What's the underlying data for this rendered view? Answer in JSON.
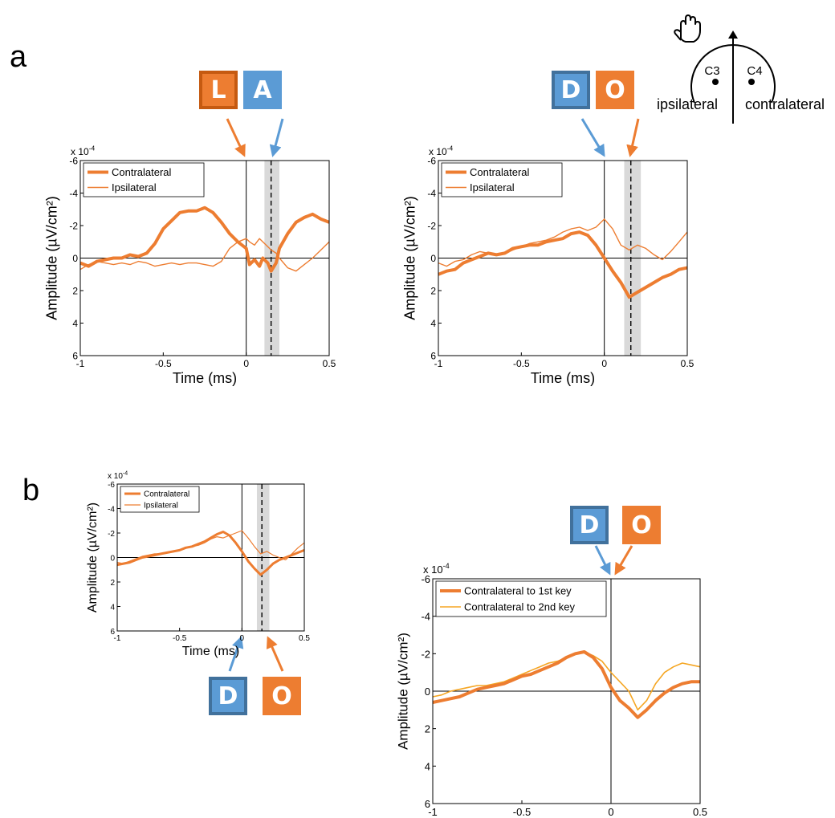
{
  "panel_labels": {
    "a": "a",
    "b": "b"
  },
  "colors": {
    "orange": "#ed7d31",
    "blue": "#5b9bd5",
    "orange_frame": "#c55a11",
    "blue_frame": "#41719c",
    "light_orange": "#f5a623",
    "shade": "#d9d9d9"
  },
  "head_diagram": {
    "hand_icon": "raised-hand-icon",
    "electrodes": [
      "C3",
      "C4"
    ],
    "left_label": "ipsilateral",
    "right_label": "contralateral"
  },
  "keys": {
    "a1_first": "L",
    "a1_second": "A",
    "a2_first": "D",
    "a2_second": "O",
    "b1_first": "D",
    "b1_second": "O",
    "b2_first": "D",
    "b2_second": "O"
  },
  "chart_data": [
    {
      "id": "a1",
      "type": "line",
      "xlabel": "Time (ms)",
      "ylabel": "Amplitude (µV/cm²)",
      "scale_label": "x 10-4",
      "xlim": [
        -1,
        0.5
      ],
      "ylim": [
        -6,
        6
      ],
      "y_inverted": true,
      "xticks": [
        -1,
        -0.5,
        0,
        0.5
      ],
      "xtick_labels": [
        "-1",
        "-0.5",
        "0",
        "0.5"
      ],
      "yticks": [
        -6,
        -4,
        -2,
        0,
        2,
        4,
        6
      ],
      "ytick_labels": [
        "-6",
        "-4",
        "-2",
        "0",
        "2",
        "4",
        "6"
      ],
      "legend": "top-left",
      "vline_solid": 0,
      "vline_dashed": 0.15,
      "shade": [
        0.11,
        0.2
      ],
      "series": [
        {
          "name": "Contralateral",
          "style": "thick",
          "x": [
            -1,
            -0.95,
            -0.9,
            -0.85,
            -0.8,
            -0.75,
            -0.7,
            -0.65,
            -0.6,
            -0.55,
            -0.5,
            -0.45,
            -0.4,
            -0.35,
            -0.3,
            -0.25,
            -0.2,
            -0.15,
            -0.1,
            -0.05,
            0,
            0.02,
            0.05,
            0.08,
            0.1,
            0.13,
            0.15,
            0.18,
            0.2,
            0.25,
            0.3,
            0.35,
            0.4,
            0.45,
            0.5
          ],
          "y": [
            0.3,
            0.5,
            0.2,
            0.1,
            0,
            0,
            -0.2,
            -0.1,
            -0.3,
            -0.9,
            -1.8,
            -2.3,
            -2.8,
            -2.9,
            -2.9,
            -3.1,
            -2.8,
            -2.2,
            -1.5,
            -1.0,
            -0.6,
            0.4,
            0.1,
            0.5,
            0,
            0.3,
            0.8,
            0.3,
            -0.6,
            -1.5,
            -2.2,
            -2.5,
            -2.7,
            -2.4,
            -2.2
          ]
        },
        {
          "name": "Ipsilateral",
          "style": "thin",
          "x": [
            -1,
            -0.95,
            -0.9,
            -0.85,
            -0.8,
            -0.75,
            -0.7,
            -0.65,
            -0.6,
            -0.55,
            -0.5,
            -0.45,
            -0.4,
            -0.35,
            -0.3,
            -0.25,
            -0.2,
            -0.15,
            -0.1,
            -0.05,
            0,
            0.02,
            0.05,
            0.08,
            0.1,
            0.13,
            0.15,
            0.18,
            0.2,
            0.25,
            0.3,
            0.35,
            0.4,
            0.45,
            0.5
          ],
          "y": [
            0.7,
            0.4,
            0.2,
            0.3,
            0.4,
            0.3,
            0.4,
            0.2,
            0.3,
            0.5,
            0.4,
            0.3,
            0.4,
            0.3,
            0.3,
            0.4,
            0.5,
            0.2,
            -0.6,
            -1.0,
            -1.2,
            -1.0,
            -0.8,
            -1.2,
            -1.0,
            -0.7,
            -0.5,
            -0.3,
            0,
            0.6,
            0.8,
            0.4,
            0,
            -0.5,
            -1.0
          ]
        }
      ]
    },
    {
      "id": "a2",
      "type": "line",
      "xlabel": "Time (ms)",
      "ylabel": "Amplitude (µV/cm²)",
      "scale_label": "x 10-4",
      "xlim": [
        -1,
        0.5
      ],
      "ylim": [
        -6,
        6
      ],
      "y_inverted": true,
      "xticks": [
        -1,
        -0.5,
        0,
        0.5
      ],
      "xtick_labels": [
        "-1",
        "-0.5",
        "0",
        "0.5"
      ],
      "yticks": [
        -6,
        -4,
        -2,
        0,
        2,
        4,
        6
      ],
      "ytick_labels": [
        "-6",
        "-4",
        "-2",
        "0",
        "2",
        "4",
        "6"
      ],
      "legend": "top-left",
      "vline_solid": 0,
      "vline_dashed": 0.16,
      "shade": [
        0.12,
        0.22
      ],
      "series": [
        {
          "name": "Contralateral",
          "style": "thick",
          "x": [
            -1,
            -0.95,
            -0.9,
            -0.85,
            -0.8,
            -0.75,
            -0.7,
            -0.65,
            -0.6,
            -0.55,
            -0.5,
            -0.45,
            -0.4,
            -0.35,
            -0.3,
            -0.25,
            -0.2,
            -0.15,
            -0.1,
            -0.05,
            0,
            0.05,
            0.1,
            0.15,
            0.2,
            0.25,
            0.3,
            0.35,
            0.4,
            0.45,
            0.5
          ],
          "y": [
            1.0,
            0.8,
            0.7,
            0.3,
            0.1,
            -0.1,
            -0.3,
            -0.2,
            -0.3,
            -0.6,
            -0.7,
            -0.8,
            -0.8,
            -1.0,
            -1.1,
            -1.2,
            -1.5,
            -1.6,
            -1.4,
            -0.8,
            0,
            0.8,
            1.5,
            2.4,
            2.1,
            1.8,
            1.5,
            1.2,
            1.0,
            0.7,
            0.6
          ]
        },
        {
          "name": "Ipsilateral",
          "style": "thin",
          "x": [
            -1,
            -0.95,
            -0.9,
            -0.85,
            -0.8,
            -0.75,
            -0.7,
            -0.65,
            -0.6,
            -0.55,
            -0.5,
            -0.45,
            -0.4,
            -0.35,
            -0.3,
            -0.25,
            -0.2,
            -0.15,
            -0.1,
            -0.05,
            0,
            0.05,
            0.1,
            0.15,
            0.2,
            0.25,
            0.3,
            0.35,
            0.4,
            0.45,
            0.5
          ],
          "y": [
            0.3,
            0.5,
            0.2,
            0.1,
            -0.2,
            -0.4,
            -0.3,
            -0.2,
            -0.3,
            -0.5,
            -0.7,
            -0.9,
            -1.0,
            -1.1,
            -1.3,
            -1.6,
            -1.8,
            -1.9,
            -1.7,
            -1.9,
            -2.4,
            -1.8,
            -0.8,
            -0.5,
            -0.8,
            -0.6,
            -0.2,
            0.1,
            -0.4,
            -1.0,
            -1.6
          ]
        }
      ]
    },
    {
      "id": "b1",
      "type": "line",
      "xlabel": "Time (ms)",
      "ylabel": "Amplitude (µV/cm²)",
      "scale_label": "x 10-4",
      "xlim": [
        -1,
        0.5
      ],
      "ylim": [
        -6,
        6
      ],
      "y_inverted": true,
      "xticks": [
        -1,
        -0.5,
        0,
        0.5
      ],
      "xtick_labels": [
        "-1",
        "-0.5",
        "0",
        "0.5"
      ],
      "yticks": [
        -6,
        -4,
        -2,
        0,
        2,
        4,
        6
      ],
      "ytick_labels": [
        "-6",
        "-4",
        "-2",
        "0",
        "2",
        "4",
        "6"
      ],
      "legend": "top-left",
      "vline_solid": 0,
      "vline_dashed": 0.16,
      "shade": [
        0.12,
        0.22
      ],
      "series": [
        {
          "name": "Contralateral",
          "style": "thick",
          "x": [
            -1,
            -0.95,
            -0.9,
            -0.85,
            -0.8,
            -0.75,
            -0.7,
            -0.65,
            -0.6,
            -0.55,
            -0.5,
            -0.45,
            -0.4,
            -0.35,
            -0.3,
            -0.25,
            -0.2,
            -0.15,
            -0.1,
            -0.05,
            0,
            0.05,
            0.1,
            0.15,
            0.2,
            0.25,
            0.3,
            0.35,
            0.4,
            0.45,
            0.5
          ],
          "y": [
            0.6,
            0.5,
            0.4,
            0.2,
            0,
            -0.1,
            -0.2,
            -0.3,
            -0.4,
            -0.5,
            -0.6,
            -0.8,
            -0.9,
            -1.1,
            -1.3,
            -1.6,
            -1.9,
            -2.1,
            -1.8,
            -1.2,
            -0.5,
            0.3,
            0.9,
            1.4,
            1.0,
            0.5,
            0.2,
            0,
            -0.2,
            -0.4,
            -0.6
          ]
        },
        {
          "name": "Ipsilateral",
          "style": "thin",
          "x": [
            -1,
            -0.95,
            -0.9,
            -0.85,
            -0.8,
            -0.75,
            -0.7,
            -0.65,
            -0.6,
            -0.55,
            -0.5,
            -0.45,
            -0.4,
            -0.35,
            -0.3,
            -0.25,
            -0.2,
            -0.15,
            -0.1,
            -0.05,
            0,
            0.05,
            0.1,
            0.15,
            0.2,
            0.25,
            0.3,
            0.35,
            0.4,
            0.45,
            0.5
          ],
          "y": [
            0.4,
            0.5,
            0.3,
            0.1,
            -0.1,
            -0.2,
            -0.3,
            -0.3,
            -0.4,
            -0.5,
            -0.6,
            -0.8,
            -0.9,
            -1.0,
            -1.2,
            -1.5,
            -1.7,
            -1.6,
            -1.8,
            -2.0,
            -2.2,
            -1.6,
            -0.9,
            -0.3,
            -0.5,
            -0.2,
            0,
            0.2,
            -0.3,
            -0.8,
            -1.2
          ]
        }
      ]
    },
    {
      "id": "b2",
      "type": "line",
      "xlabel": "Time (ms)",
      "ylabel": "Amplitude (µV/cm²)",
      "scale_label": "x 10-4",
      "xlim": [
        -1,
        0.5
      ],
      "ylim": [
        -6,
        6
      ],
      "y_inverted": true,
      "xticks": [
        -1,
        -0.5,
        0,
        0.5
      ],
      "xtick_labels": [
        "-1",
        "-0.5",
        "0",
        "0.5"
      ],
      "yticks": [
        -6,
        -4,
        -2,
        0,
        2,
        4,
        6
      ],
      "ytick_labels": [
        "-6",
        "-4",
        "-2",
        "0",
        "2",
        "4",
        "6"
      ],
      "legend": "top-left",
      "vline_solid": 0,
      "series": [
        {
          "name": "Contralateral to 1st key",
          "style": "thick",
          "x": [
            -1,
            -0.95,
            -0.9,
            -0.85,
            -0.8,
            -0.75,
            -0.7,
            -0.65,
            -0.6,
            -0.55,
            -0.5,
            -0.45,
            -0.4,
            -0.35,
            -0.3,
            -0.25,
            -0.2,
            -0.15,
            -0.1,
            -0.05,
            0,
            0.05,
            0.1,
            0.15,
            0.2,
            0.25,
            0.3,
            0.35,
            0.4,
            0.45,
            0.5
          ],
          "y": [
            0.6,
            0.5,
            0.4,
            0.3,
            0.1,
            -0.1,
            -0.2,
            -0.3,
            -0.4,
            -0.6,
            -0.8,
            -0.9,
            -1.1,
            -1.3,
            -1.5,
            -1.8,
            -2.0,
            -2.1,
            -1.8,
            -1.2,
            -0.2,
            0.5,
            0.9,
            1.4,
            1.0,
            0.5,
            0.1,
            -0.2,
            -0.4,
            -0.5,
            -0.5
          ]
        },
        {
          "name": "Contralateral to 2nd key",
          "style": "thin",
          "x": [
            -1,
            -0.95,
            -0.9,
            -0.85,
            -0.8,
            -0.75,
            -0.7,
            -0.65,
            -0.6,
            -0.55,
            -0.5,
            -0.45,
            -0.4,
            -0.35,
            -0.3,
            -0.25,
            -0.2,
            -0.15,
            -0.1,
            -0.05,
            0,
            0.05,
            0.1,
            0.15,
            0.2,
            0.25,
            0.3,
            0.35,
            0.4,
            0.45,
            0.5
          ],
          "y": [
            0.3,
            0.2,
            0,
            -0.1,
            -0.2,
            -0.3,
            -0.3,
            -0.4,
            -0.5,
            -0.7,
            -0.9,
            -1.1,
            -1.3,
            -1.5,
            -1.6,
            -1.8,
            -2.0,
            -2.1,
            -1.9,
            -1.6,
            -1.0,
            -0.5,
            0,
            1.0,
            0.5,
            -0.4,
            -1.0,
            -1.3,
            -1.5,
            -1.4,
            -1.3
          ]
        }
      ]
    }
  ]
}
